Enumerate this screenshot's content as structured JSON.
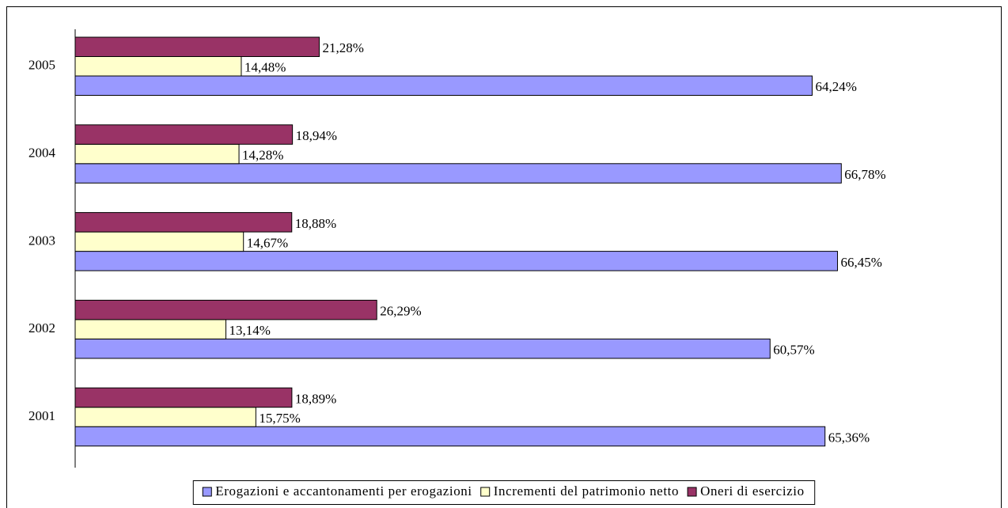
{
  "chart_data": {
    "type": "bar",
    "orientation": "horizontal",
    "categories": [
      "2005",
      "2004",
      "2003",
      "2002",
      "2001"
    ],
    "series": [
      {
        "name": "Erogazioni e accantonamenti per erogazioni",
        "color": "#9999ff",
        "values": [
          64.24,
          66.78,
          66.45,
          60.57,
          65.36
        ],
        "value_labels": [
          "64,24%",
          "66,78%",
          "66,45%",
          "60,57%",
          "65,36%"
        ]
      },
      {
        "name": "Incrementi del patrimonio netto",
        "color": "#ffffcc",
        "values": [
          14.48,
          14.28,
          14.67,
          13.14,
          15.75
        ],
        "value_labels": [
          "14,48%",
          "14,28%",
          "14,67%",
          "13,14%",
          "15,75%"
        ]
      },
      {
        "name": "Oneri di esercizio",
        "color": "#993366",
        "values": [
          21.28,
          18.94,
          18.88,
          26.29,
          18.89
        ],
        "value_labels": [
          "21,28%",
          "18,94%",
          "18,88%",
          "26,29%",
          "18,89%"
        ]
      }
    ],
    "xlim": [
      0,
      80
    ],
    "legend": "bottom"
  }
}
